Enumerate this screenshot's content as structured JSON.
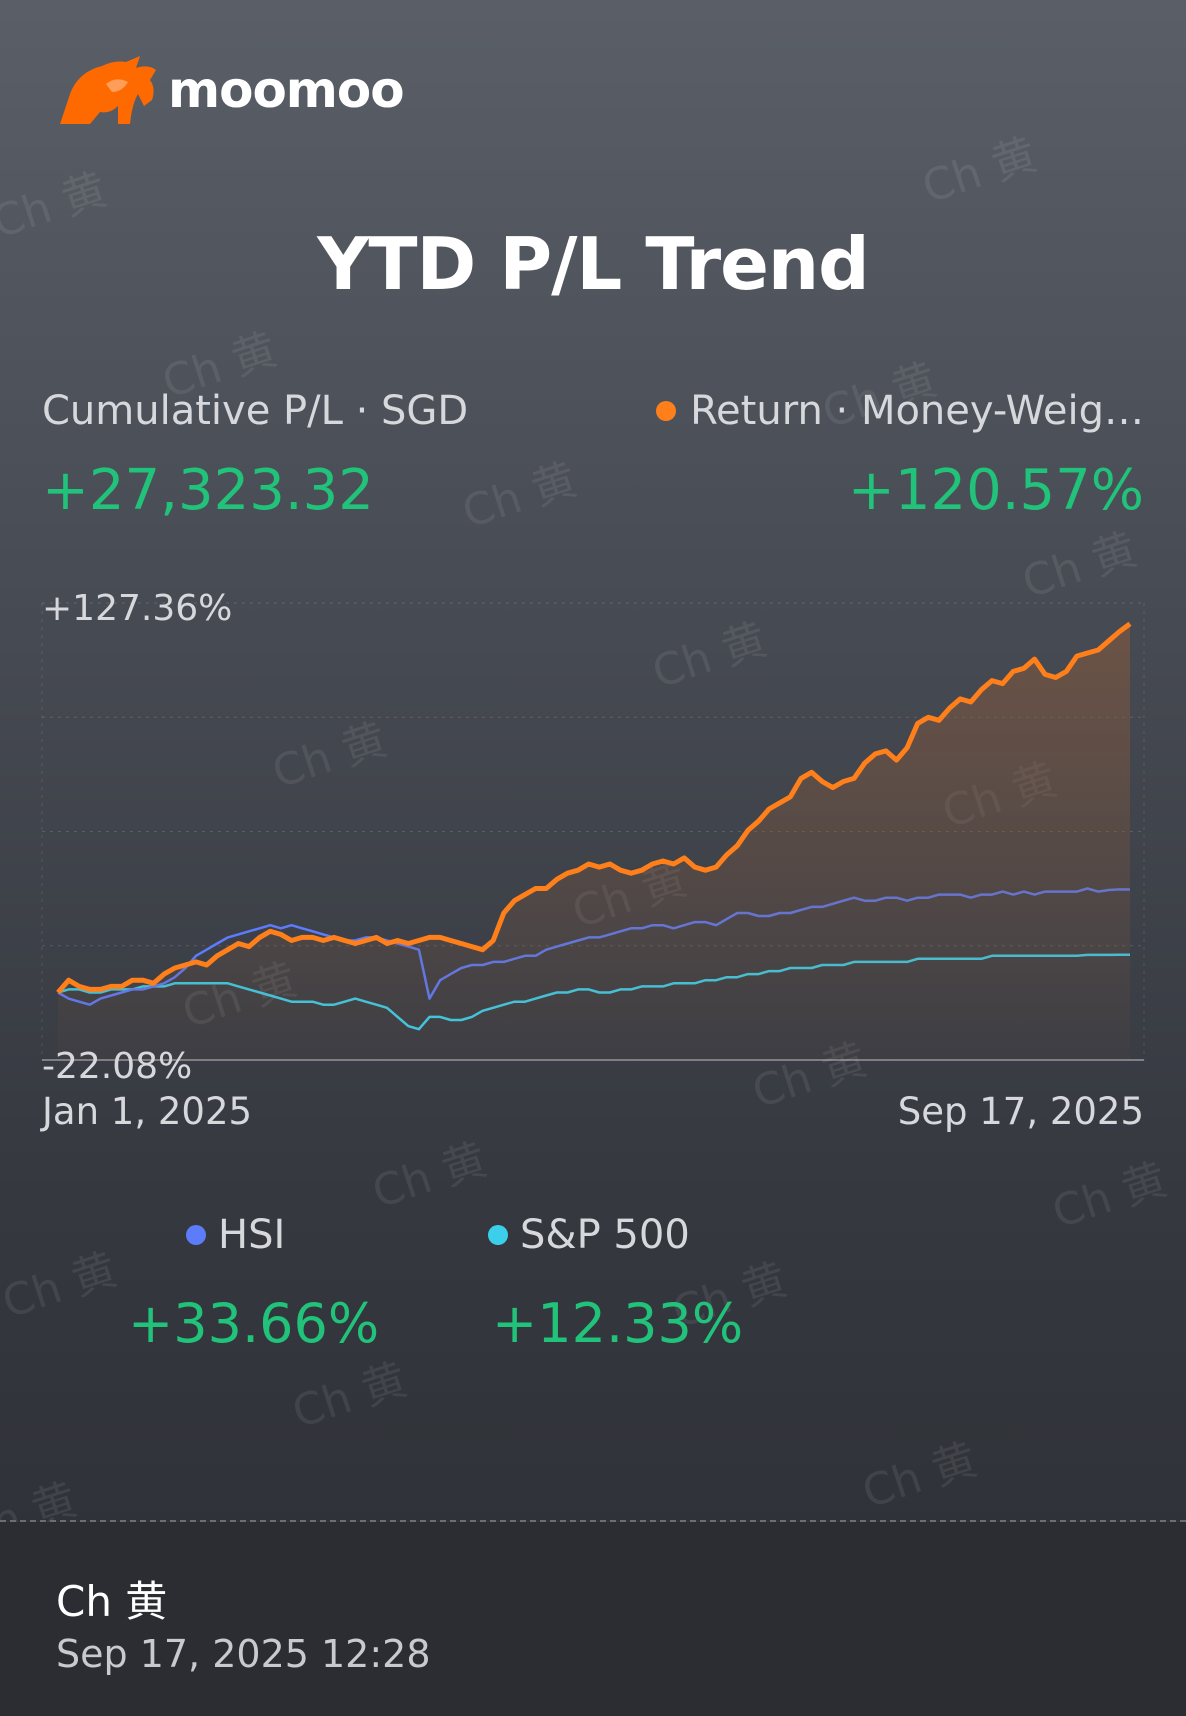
{
  "brand": {
    "name": "moomoo",
    "logo_icon": "bull-icon",
    "accent": "#ff6a00"
  },
  "title": "YTD P/L Trend",
  "summary": {
    "left_label": "Cumulative P/L · SGD",
    "left_value": "+27,323.32",
    "right_label": "Return · Money-Weig…",
    "right_value": "+120.57%"
  },
  "watermark_text": "Ch 黄",
  "benchmarks": [
    {
      "name": "HSI",
      "value": "+33.66%",
      "color": "#5c7cfa"
    },
    {
      "name": "S&P 500",
      "value": "+12.33%",
      "color": "#3ccfea"
    }
  ],
  "footer": {
    "name": "Ch 黄",
    "timestamp": "Sep 17, 2025 12:28"
  },
  "chart_data": {
    "type": "line",
    "x_start": "Jan 1, 2025",
    "x_end": "Sep 17, 2025",
    "y_max_label": "+127.36%",
    "y_min_label": "-22.08%",
    "ylim": [
      -22.08,
      127.36
    ],
    "grid": true,
    "series": [
      {
        "name": "Return",
        "color": "#ff7f1a",
        "fill": true,
        "values": [
          0,
          4,
          2,
          1,
          1,
          2,
          2,
          4,
          4,
          3,
          6,
          8,
          9,
          10,
          9,
          12,
          14,
          16,
          15,
          18,
          20,
          19,
          17,
          18,
          18,
          17,
          18,
          17,
          16,
          17,
          18,
          16,
          17,
          16,
          17,
          18,
          18,
          17,
          16,
          15,
          14,
          17,
          26,
          30,
          32,
          34,
          34,
          37,
          39,
          40,
          42,
          41,
          42,
          40,
          39,
          40,
          42,
          43,
          42,
          44,
          41,
          40,
          41,
          45,
          48,
          53,
          56,
          60,
          62,
          64,
          70,
          72,
          69,
          67,
          69,
          70,
          75,
          78,
          79,
          76,
          80,
          88,
          90,
          89,
          93,
          96,
          95,
          99,
          102,
          101,
          105,
          106,
          109,
          104,
          103,
          105,
          110,
          111,
          112,
          115,
          118,
          120.57
        ]
      },
      {
        "name": "HSI",
        "color": "#5c7cfa",
        "fill": false,
        "values": [
          0,
          -2,
          -3,
          -4,
          -2,
          -1,
          0,
          1,
          1,
          2,
          3,
          5,
          8,
          12,
          14,
          16,
          18,
          19,
          20,
          21,
          22,
          21,
          22,
          21,
          20,
          19,
          18,
          17,
          17,
          18,
          18,
          17,
          16,
          15,
          14,
          -2,
          4,
          6,
          8,
          9,
          9,
          10,
          10,
          11,
          12,
          12,
          14,
          15,
          16,
          17,
          18,
          18,
          19,
          20,
          21,
          21,
          22,
          22,
          21,
          22,
          23,
          23,
          22,
          24,
          26,
          26,
          25,
          25,
          26,
          26,
          27,
          28,
          28,
          29,
          30,
          31,
          30,
          30,
          31,
          31,
          30,
          31,
          31,
          32,
          32,
          32,
          31,
          32,
          32,
          33,
          32,
          33,
          32,
          33,
          33,
          33,
          33,
          34,
          33,
          33.5,
          33.7,
          33.66
        ]
      },
      {
        "name": "S&P 500",
        "color": "#3ccfea",
        "fill": false,
        "values": [
          0,
          1,
          1,
          0,
          0,
          1,
          1,
          1,
          2,
          2,
          2,
          3,
          3,
          3,
          3,
          3,
          3,
          2,
          1,
          0,
          -1,
          -2,
          -3,
          -3,
          -3,
          -4,
          -4,
          -3,
          -2,
          -3,
          -4,
          -5,
          -8,
          -11,
          -12,
          -8,
          -8,
          -9,
          -9,
          -8,
          -6,
          -5,
          -4,
          -3,
          -3,
          -2,
          -1,
          0,
          0,
          1,
          1,
          0,
          0,
          1,
          1,
          2,
          2,
          2,
          3,
          3,
          3,
          4,
          4,
          5,
          5,
          6,
          6,
          7,
          7,
          8,
          8,
          8,
          9,
          9,
          9,
          10,
          10,
          10,
          10,
          10,
          10,
          11,
          11,
          11,
          11,
          11,
          11,
          11,
          12,
          12,
          12,
          12,
          12,
          12,
          12,
          12,
          12,
          12.3,
          12.3,
          12.3,
          12.33,
          12.33
        ]
      }
    ]
  }
}
